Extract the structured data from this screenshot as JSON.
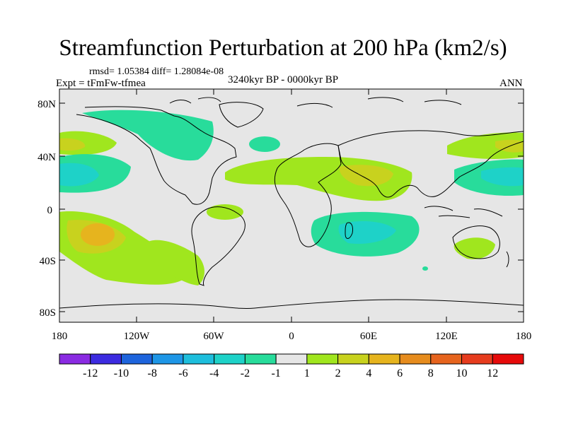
{
  "title": "Streamfunction Perturbation at 200 hPa (km2/s)",
  "stats": "rmsd= 1.05384 diff= 1.28084e-08",
  "experiment": "Expt = tFmFw-tfmea",
  "period": "3240kyr BP - 0000kyr BP",
  "season": "ANN",
  "lat_labels": [
    "80N",
    "40N",
    "0",
    "40S",
    "80S"
  ],
  "lon_labels": [
    "180",
    "120W",
    "60W",
    "0",
    "60E",
    "120E",
    "180"
  ],
  "colorbar": {
    "labels": [
      "-12",
      "-10",
      "-8",
      "-6",
      "-4",
      "-2",
      "-1",
      "1",
      "2",
      "4",
      "6",
      "8",
      "10",
      "12"
    ],
    "colors": [
      "#8a2be2",
      "#3c2be0",
      "#1e64dc",
      "#1e96e6",
      "#1ebedc",
      "#1ed2c8",
      "#28dc9b",
      "#e6e6e6",
      "#a0e61e",
      "#c8d21e",
      "#e6b41e",
      "#e68c1e",
      "#e6641e",
      "#e63c1e",
      "#e60a0a"
    ]
  },
  "colors": {
    "background_field": "#e6e6e6",
    "negative_small": "#28dc9b",
    "negative_mid": "#1ed2c8",
    "positive_small": "#a0e61e",
    "positive_mid": "#c8d21e",
    "positive_high": "#e6b41e"
  }
}
